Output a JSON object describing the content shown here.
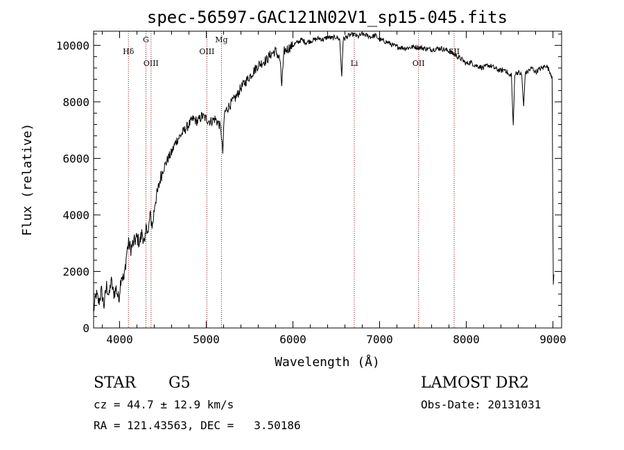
{
  "chart_data": {
    "type": "line",
    "title": "spec-56597-GAC121N02V1_sp15-045.fits",
    "xlabel": "Wavelength (Å)",
    "ylabel": "Flux (relative)",
    "xlim": [
      3700,
      9100
    ],
    "ylim": [
      0,
      10500
    ],
    "xticks": [
      4000,
      5000,
      6000,
      7000,
      8000,
      9000
    ],
    "yticks": [
      0,
      2000,
      4000,
      6000,
      8000,
      10000
    ],
    "spectrum": {
      "x": [
        3700,
        3730,
        3760,
        3790,
        3820,
        3850,
        3880,
        3900,
        3930,
        3960,
        3990,
        4020,
        4050,
        4080,
        4100,
        4130,
        4160,
        4200,
        4230,
        4260,
        4290,
        4310,
        4330,
        4350,
        4380,
        4410,
        4440,
        4470,
        4500,
        4530,
        4560,
        4600,
        4650,
        4700,
        4750,
        4800,
        4850,
        4900,
        4950,
        5000,
        5050,
        5100,
        5150,
        5170,
        5190,
        5210,
        5250,
        5300,
        5350,
        5400,
        5450,
        5500,
        5550,
        5600,
        5650,
        5700,
        5750,
        5800,
        5850,
        5870,
        5900,
        5950,
        6000,
        6050,
        6100,
        6150,
        6200,
        6250,
        6300,
        6350,
        6400,
        6450,
        6500,
        6540,
        6563,
        6580,
        6620,
        6650,
        6700,
        6750,
        6800,
        6850,
        6900,
        6950,
        7000,
        7050,
        7100,
        7150,
        7200,
        7300,
        7400,
        7500,
        7600,
        7700,
        7800,
        7850,
        7900,
        7950,
        8000,
        8050,
        8100,
        8150,
        8200,
        8250,
        8300,
        8350,
        8400,
        8450,
        8498,
        8520,
        8542,
        8560,
        8600,
        8640,
        8662,
        8680,
        8720,
        8760,
        8800,
        8840,
        8880,
        8920,
        8960,
        8990,
        9000,
        9005,
        9010
      ],
      "y": [
        600,
        1200,
        900,
        1300,
        800,
        1500,
        1100,
        1700,
        1200,
        1400,
        1000,
        1900,
        1700,
        2600,
        3000,
        2800,
        3000,
        3200,
        3000,
        3400,
        2900,
        3700,
        3300,
        4000,
        3600,
        4500,
        4800,
        5300,
        5600,
        5800,
        6000,
        6200,
        6600,
        6800,
        7000,
        7200,
        7400,
        7300,
        7500,
        7400,
        7300,
        7400,
        7200,
        7000,
        6200,
        7600,
        7800,
        8000,
        8200,
        8500,
        8700,
        8900,
        9100,
        9300,
        9400,
        9500,
        9700,
        9800,
        9500,
        8600,
        9800,
        9900,
        10000,
        10100,
        10200,
        10100,
        10150,
        10200,
        10250,
        10200,
        10300,
        10250,
        10300,
        10200,
        8900,
        10200,
        10300,
        10350,
        10400,
        10300,
        10400,
        10350,
        10300,
        10350,
        10200,
        10150,
        10100,
        10000,
        9950,
        9900,
        9950,
        9900,
        9850,
        9900,
        9800,
        9700,
        9600,
        9500,
        9350,
        9400,
        9300,
        9250,
        9200,
        9300,
        9250,
        9150,
        9100,
        9150,
        8900,
        9000,
        7100,
        9000,
        9050,
        8950,
        7800,
        9000,
        9100,
        9200,
        9050,
        9150,
        9200,
        9300,
        9100,
        8900,
        3500,
        1600,
        1900
      ]
    },
    "lines": [
      {
        "label": "Hδ",
        "x": 4102,
        "row": 1
      },
      {
        "label": "G",
        "x": 4304,
        "row": 0
      },
      {
        "label": "OIII",
        "x": 4363,
        "row": 2
      },
      {
        "label": "OIII",
        "x": 5007,
        "row": 1
      },
      {
        "label": "Mg",
        "x": 5175,
        "row": 0
      },
      {
        "label": "Li",
        "x": 6708,
        "row": 2
      },
      {
        "label": "OII",
        "x": 7450,
        "row": 2
      },
      {
        "label": "SII",
        "x": 7860,
        "row": 1
      }
    ],
    "grid": false,
    "legend": "none"
  },
  "info": {
    "class": "STAR",
    "subclass": "G5",
    "survey": "LAMOST DR2",
    "cz": "cz = 44.7 ± 12.9 km/s",
    "obs_date": "Obs-Date: 20131031",
    "radec": "RA = 121.43563, DEC =   3.50186"
  }
}
